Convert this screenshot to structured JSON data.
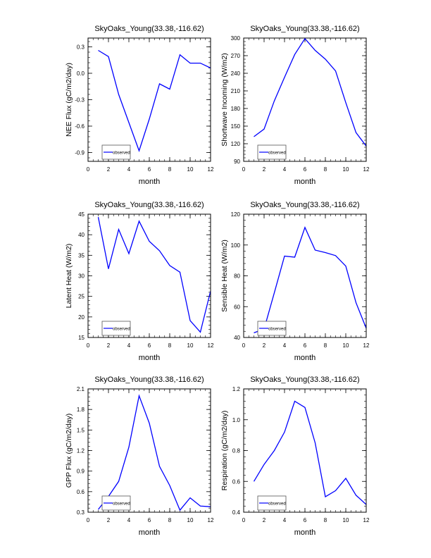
{
  "chart_data": [
    {
      "type": "line",
      "title": "SkyOaks_Young(33.38,-116.62)",
      "xlabel": "month",
      "ylabel": "NEE Flux (gC/m2/day)",
      "xlim": [
        0,
        12
      ],
      "xticks": [
        0,
        2,
        4,
        6,
        8,
        10,
        12
      ],
      "ylim": [
        -1.0,
        0.4
      ],
      "yticks": [
        -0.9,
        -0.6,
        -0.3,
        0.0,
        0.3
      ],
      "ytick_labels": [
        "-0.9",
        "-0.6",
        "-0.3",
        "0.0",
        "0.3"
      ],
      "legend": "bottom-left",
      "series": [
        {
          "name": "observed",
          "color": "#0000ff",
          "x": [
            1,
            2,
            3,
            4,
            5,
            6,
            7,
            8,
            9,
            10,
            11,
            12
          ],
          "values": [
            0.26,
            0.19,
            -0.24,
            -0.56,
            -0.88,
            -0.52,
            -0.12,
            -0.18,
            0.21,
            0.115,
            0.115,
            0.06
          ]
        }
      ]
    },
    {
      "type": "line",
      "title": "SkyOaks_Young(33.38,-116.62)",
      "xlabel": "month",
      "ylabel": "Shortwave Incoming (W/m2)",
      "xlim": [
        0,
        12
      ],
      "xticks": [
        0,
        2,
        4,
        6,
        8,
        10,
        12
      ],
      "ylim": [
        90,
        300
      ],
      "yticks": [
        90,
        120,
        150,
        180,
        210,
        240,
        270,
        300
      ],
      "ytick_labels": [
        "90",
        "120",
        "150",
        "180",
        "210",
        "240",
        "270",
        "300"
      ],
      "legend": "bottom-left",
      "series": [
        {
          "name": "observed",
          "color": "#0000ff",
          "x": [
            1,
            2,
            3,
            4,
            5,
            6,
            7,
            8,
            9,
            10,
            11,
            12
          ],
          "values": [
            132,
            145,
            193,
            233,
            272,
            299,
            279,
            264,
            244,
            190,
            139,
            116
          ]
        }
      ]
    },
    {
      "type": "line",
      "title": "SkyOaks_Young(33.38,-116.62)",
      "xlabel": "month",
      "ylabel": "Latent Heat (W/m2)",
      "xlim": [
        0,
        12
      ],
      "xticks": [
        0,
        2,
        4,
        6,
        8,
        10,
        12
      ],
      "ylim": [
        15,
        45
      ],
      "yticks": [
        15,
        20,
        25,
        30,
        35,
        40,
        45
      ],
      "ytick_labels": [
        "15",
        "20",
        "25",
        "30",
        "35",
        "40",
        "45"
      ],
      "legend": "bottom-left",
      "series": [
        {
          "name": "observed",
          "color": "#0000ff",
          "x": [
            1,
            2,
            3,
            4,
            5,
            6,
            7,
            8,
            9,
            10,
            11,
            12
          ],
          "values": [
            44.3,
            31.7,
            41.3,
            35.4,
            43.3,
            38.4,
            36.1,
            32.5,
            30.9,
            19.1,
            16.3,
            26.3
          ]
        }
      ]
    },
    {
      "type": "line",
      "title": "SkyOaks_Young(33.38,-116.62)",
      "xlabel": "month",
      "ylabel": "Sensible Heat (W/m2)",
      "xlim": [
        0,
        12
      ],
      "xticks": [
        0,
        2,
        4,
        6,
        8,
        10,
        12
      ],
      "ylim": [
        40,
        120
      ],
      "yticks": [
        40,
        60,
        80,
        100,
        120
      ],
      "ytick_labels": [
        "40",
        "60",
        "80",
        "100",
        "120"
      ],
      "legend": "bottom-left",
      "series": [
        {
          "name": "observed",
          "color": "#0000ff",
          "x": [
            1,
            2,
            3,
            4,
            5,
            6,
            7,
            8,
            9,
            10,
            11,
            12
          ],
          "values": [
            43,
            45.5,
            69,
            92.8,
            92.1,
            111.4,
            96.7,
            95.1,
            93.1,
            86.3,
            62.6,
            46
          ]
        }
      ]
    },
    {
      "type": "line",
      "title": "SkyOaks_Young(33.38,-116.62)",
      "xlabel": "month",
      "ylabel": "GPP Flux (gC/m2/day)",
      "xlim": [
        0,
        12
      ],
      "xticks": [
        0,
        2,
        4,
        6,
        8,
        10,
        12
      ],
      "ylim": [
        0.3,
        2.1
      ],
      "yticks": [
        0.3,
        0.6,
        0.9,
        1.2,
        1.5,
        1.8,
        2.1
      ],
      "ytick_labels": [
        "0.3",
        "0.6",
        "0.9",
        "1.2",
        "1.5",
        "1.8",
        "2.1"
      ],
      "legend": "bottom-left",
      "series": [
        {
          "name": "observed",
          "color": "#0000ff",
          "x": [
            1,
            2,
            3,
            4,
            5,
            6,
            7,
            8,
            9,
            10,
            11,
            12
          ],
          "values": [
            0.34,
            0.53,
            0.75,
            1.25,
            2.0,
            1.6,
            0.97,
            0.69,
            0.33,
            0.51,
            0.39,
            0.38
          ]
        }
      ]
    },
    {
      "type": "line",
      "title": "SkyOaks_Young(33.38,-116.62)",
      "xlabel": "month",
      "ylabel": "Respiration (gC/m2/day)",
      "xlim": [
        0,
        12
      ],
      "xticks": [
        0,
        2,
        4,
        6,
        8,
        10,
        12
      ],
      "ylim": [
        0.4,
        1.2
      ],
      "yticks": [
        0.4,
        0.6,
        0.8,
        1.0,
        1.2
      ],
      "ytick_labels": [
        "0.4",
        "0.6",
        "0.8",
        "1.0",
        "1.2"
      ],
      "legend": "bottom-left",
      "series": [
        {
          "name": "observed",
          "color": "#0000ff",
          "x": [
            1,
            2,
            3,
            4,
            5,
            6,
            7,
            8,
            9,
            10,
            11,
            12
          ],
          "values": [
            0.6,
            0.71,
            0.8,
            0.92,
            1.12,
            1.08,
            0.85,
            0.5,
            0.54,
            0.62,
            0.51,
            0.45
          ]
        }
      ]
    }
  ]
}
